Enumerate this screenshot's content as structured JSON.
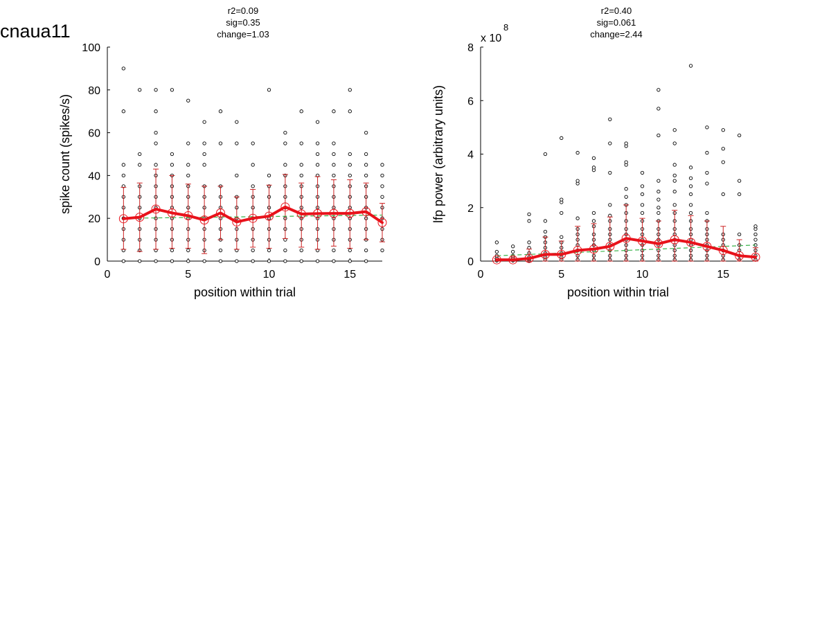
{
  "figure": {
    "title": "cnaua11"
  },
  "chart_data": [
    {
      "type": "scatter",
      "stats": [
        "r2=0.09",
        "sig=0.35",
        "change=1.03"
      ],
      "xlabel": "position within trial",
      "ylabel": "spike count (spikes/s)",
      "exponent_label": "",
      "xlim": [
        0,
        17
      ],
      "ylim": [
        0,
        100
      ],
      "xticks": [
        0,
        5,
        10,
        15
      ],
      "yticks": [
        0,
        20,
        40,
        60,
        80,
        100
      ],
      "grid": false,
      "raw_points": [
        {
          "x": 1,
          "y": [
            0,
            5,
            10,
            15,
            20,
            25,
            30,
            35,
            40,
            45,
            70,
            90
          ]
        },
        {
          "x": 2,
          "y": [
            0,
            5,
            10,
            15,
            20,
            25,
            30,
            35,
            45,
            50,
            80
          ]
        },
        {
          "x": 3,
          "y": [
            0,
            5,
            10,
            15,
            20,
            25,
            30,
            35,
            40,
            45,
            55,
            60,
            70,
            80
          ]
        },
        {
          "x": 4,
          "y": [
            0,
            5,
            10,
            15,
            20,
            25,
            30,
            35,
            40,
            45,
            50,
            80
          ]
        },
        {
          "x": 5,
          "y": [
            0,
            5,
            10,
            15,
            20,
            25,
            30,
            35,
            40,
            45,
            55,
            75
          ]
        },
        {
          "x": 6,
          "y": [
            0,
            5,
            10,
            15,
            20,
            25,
            30,
            35,
            45,
            50,
            55,
            65
          ]
        },
        {
          "x": 7,
          "y": [
            0,
            5,
            10,
            15,
            20,
            25,
            30,
            35,
            55,
            70
          ]
        },
        {
          "x": 8,
          "y": [
            0,
            5,
            10,
            15,
            20,
            25,
            30,
            40,
            55,
            65
          ]
        },
        {
          "x": 9,
          "y": [
            0,
            5,
            10,
            15,
            20,
            25,
            30,
            35,
            45,
            55
          ]
        },
        {
          "x": 10,
          "y": [
            0,
            5,
            10,
            15,
            20,
            25,
            30,
            35,
            40,
            80
          ]
        },
        {
          "x": 11,
          "y": [
            0,
            5,
            10,
            15,
            20,
            25,
            30,
            35,
            40,
            45,
            55,
            60
          ]
        },
        {
          "x": 12,
          "y": [
            0,
            5,
            10,
            15,
            20,
            25,
            30,
            35,
            40,
            45,
            55,
            70
          ]
        },
        {
          "x": 13,
          "y": [
            0,
            5,
            10,
            15,
            20,
            25,
            30,
            35,
            40,
            45,
            50,
            55,
            65
          ]
        },
        {
          "x": 14,
          "y": [
            0,
            5,
            10,
            15,
            20,
            25,
            30,
            35,
            40,
            45,
            50,
            55,
            70
          ]
        },
        {
          "x": 15,
          "y": [
            0,
            5,
            10,
            15,
            20,
            25,
            30,
            35,
            40,
            45,
            50,
            70,
            80
          ]
        },
        {
          "x": 16,
          "y": [
            0,
            5,
            10,
            15,
            20,
            25,
            30,
            35,
            40,
            45,
            50,
            60
          ]
        },
        {
          "x": 17,
          "y": [
            5,
            10,
            15,
            20,
            25,
            30,
            35,
            40,
            45
          ]
        }
      ],
      "mean": {
        "x": [
          1,
          2,
          3,
          4,
          5,
          6,
          7,
          8,
          9,
          10,
          11,
          12,
          13,
          14,
          15,
          16,
          17
        ],
        "y": [
          19.8,
          20.5,
          24.3,
          22.5,
          21.2,
          19.2,
          22.5,
          18.3,
          20.0,
          21.0,
          25.3,
          22.0,
          22.2,
          22.3,
          22.3,
          23.1,
          18.0
        ],
        "err_low": [
          5.5,
          4.5,
          5.5,
          6.0,
          6.0,
          3.5,
          10.0,
          5.5,
          6.5,
          6.0,
          10.5,
          6.5,
          5.5,
          7.0,
          6.0,
          10.0,
          9.0
        ],
        "err_high": [
          34.5,
          36.5,
          43.0,
          40.0,
          36.0,
          35.0,
          35.0,
          30.0,
          33.5,
          35.5,
          40.5,
          36.5,
          39.5,
          38.0,
          38.0,
          36.5,
          27.0
        ]
      },
      "fit": {
        "x": [
          1,
          17
        ],
        "y": [
          20.0,
          21.5
        ]
      },
      "colors": {
        "mean_line": "#e8121b",
        "error_bar": "#cc1f1f",
        "fit_line": "#39b34a",
        "points": "#000000"
      }
    },
    {
      "type": "scatter",
      "stats": [
        "r2=0.40",
        "sig=0.061",
        "change=2.44"
      ],
      "xlabel": "position within trial",
      "ylabel": "lfp power (arbitrary units)",
      "exponent_label": "x 10",
      "exponent_power": "8",
      "xlim": [
        0,
        17
      ],
      "ylim": [
        0,
        8
      ],
      "xticks": [
        0,
        5,
        10,
        15
      ],
      "yticks": [
        0,
        2,
        4,
        6,
        8
      ],
      "grid": false,
      "raw_points": [
        {
          "x": 1,
          "y": [
            0.02,
            0.05,
            0.1,
            0.2,
            0.35,
            0.7
          ]
        },
        {
          "x": 2,
          "y": [
            0.02,
            0.05,
            0.1,
            0.2,
            0.35,
            0.55
          ]
        },
        {
          "x": 3,
          "y": [
            0.02,
            0.08,
            0.15,
            0.3,
            0.5,
            0.7,
            1.5,
            1.75
          ]
        },
        {
          "x": 4,
          "y": [
            0.05,
            0.15,
            0.3,
            0.5,
            0.7,
            0.9,
            1.1,
            1.5,
            4.0
          ]
        },
        {
          "x": 5,
          "y": [
            0.05,
            0.15,
            0.3,
            0.5,
            0.7,
            0.9,
            1.8,
            2.2,
            2.3,
            4.6
          ]
        },
        {
          "x": 6,
          "y": [
            0.05,
            0.2,
            0.4,
            0.6,
            0.8,
            1.0,
            1.2,
            1.6,
            2.9,
            3.0,
            4.05
          ]
        },
        {
          "x": 7,
          "y": [
            0.05,
            0.2,
            0.4,
            0.6,
            0.8,
            1.0,
            1.3,
            1.5,
            1.8,
            3.4,
            3.5,
            3.85
          ]
        },
        {
          "x": 8,
          "y": [
            0.05,
            0.2,
            0.4,
            0.6,
            0.8,
            1.0,
            1.2,
            1.5,
            1.7,
            2.1,
            3.3,
            4.4,
            5.3
          ]
        },
        {
          "x": 9,
          "y": [
            0.05,
            0.2,
            0.4,
            0.6,
            0.8,
            1.0,
            1.2,
            1.5,
            1.8,
            2.1,
            2.4,
            2.7,
            3.6,
            3.7,
            4.3,
            4.4
          ]
        },
        {
          "x": 10,
          "y": [
            0.05,
            0.2,
            0.4,
            0.6,
            0.8,
            1.0,
            1.2,
            1.5,
            1.8,
            2.1,
            2.5,
            2.8,
            3.3
          ]
        },
        {
          "x": 11,
          "y": [
            0.05,
            0.2,
            0.4,
            0.6,
            0.8,
            1.0,
            1.2,
            1.5,
            1.8,
            2.0,
            2.3,
            2.6,
            3.0,
            4.7,
            5.7,
            6.4
          ]
        },
        {
          "x": 12,
          "y": [
            0.05,
            0.2,
            0.4,
            0.6,
            0.8,
            1.0,
            1.2,
            1.5,
            1.8,
            2.1,
            2.6,
            3.0,
            3.2,
            3.6,
            4.4,
            4.9
          ]
        },
        {
          "x": 13,
          "y": [
            0.05,
            0.2,
            0.4,
            0.6,
            0.8,
            1.0,
            1.2,
            1.5,
            1.8,
            2.1,
            2.5,
            2.8,
            3.1,
            3.5,
            7.3
          ]
        },
        {
          "x": 14,
          "y": [
            0.05,
            0.2,
            0.4,
            0.6,
            0.8,
            1.0,
            1.2,
            1.5,
            1.8,
            2.9,
            3.3,
            4.05,
            5.0
          ]
        },
        {
          "x": 15,
          "y": [
            0.05,
            0.2,
            0.4,
            0.6,
            0.8,
            1.0,
            2.5,
            3.7,
            4.2,
            4.9
          ]
        },
        {
          "x": 16,
          "y": [
            0.05,
            0.2,
            0.4,
            0.6,
            1.0,
            2.5,
            3.0,
            4.7
          ]
        },
        {
          "x": 17,
          "y": [
            0.05,
            0.2,
            0.4,
            0.6,
            0.8,
            1.0,
            1.2,
            1.3
          ]
        }
      ],
      "mean": {
        "x": [
          1,
          2,
          3,
          4,
          5,
          6,
          7,
          8,
          9,
          10,
          11,
          12,
          13,
          14,
          15,
          16,
          17
        ],
        "y": [
          0.05,
          0.05,
          0.1,
          0.25,
          0.25,
          0.4,
          0.45,
          0.55,
          0.85,
          0.75,
          0.65,
          0.8,
          0.7,
          0.55,
          0.4,
          0.2,
          0.15
        ],
        "err_low": [
          0.0,
          0.0,
          0.0,
          0.0,
          0.0,
          0.0,
          0.0,
          0.0,
          0.0,
          0.0,
          0.0,
          0.0,
          0.0,
          0.0,
          0.0,
          0.0,
          0.0
        ],
        "err_high": [
          0.1,
          0.15,
          0.45,
          0.9,
          0.75,
          1.3,
          1.4,
          1.65,
          2.1,
          1.6,
          1.5,
          1.9,
          1.7,
          1.5,
          1.3,
          0.8,
          0.5
        ]
      },
      "fit": {
        "x": [
          1,
          17
        ],
        "y": [
          0.2,
          0.6
        ]
      },
      "colors": {
        "mean_line": "#e8121b",
        "error_bar": "#cc1f1f",
        "fit_line": "#39b34a",
        "points": "#000000"
      }
    }
  ]
}
